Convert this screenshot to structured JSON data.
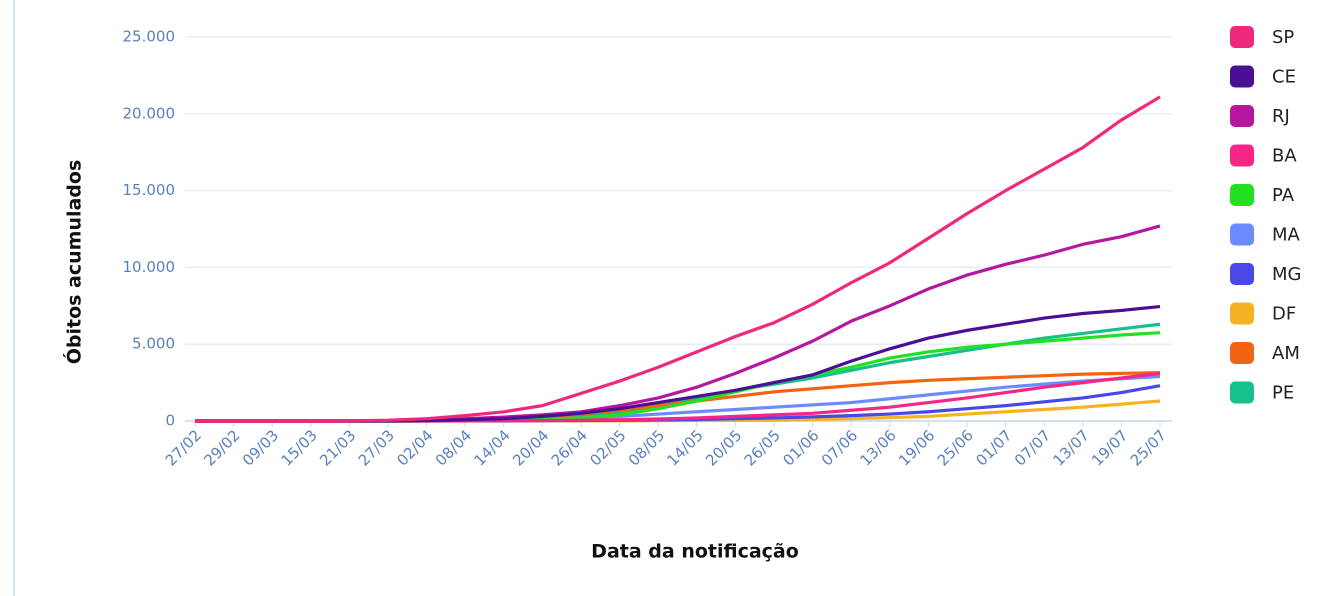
{
  "chart_data": {
    "type": "line",
    "x_label": "Data da notificação",
    "y_label": "Óbitos acumulados",
    "categories": [
      "27/02",
      "29/02",
      "09/03",
      "15/03",
      "21/03",
      "27/03",
      "02/04",
      "08/04",
      "14/04",
      "20/04",
      "26/04",
      "02/05",
      "08/05",
      "14/05",
      "20/05",
      "26/05",
      "01/06",
      "07/06",
      "13/06",
      "19/06",
      "25/06",
      "01/07",
      "07/07",
      "13/07",
      "19/07",
      "25/07"
    ],
    "ylim": [
      0,
      25000
    ],
    "yticks": [
      0,
      {
        "value": 5000,
        "label": "5.000"
      },
      {
        "value": 10000,
        "label": "10.000"
      },
      {
        "value": 15000,
        "label": "15.000"
      },
      {
        "value": 20000,
        "label": "20.000"
      },
      {
        "value": 25000,
        "label": "25.000"
      }
    ],
    "grid": true,
    "legend": "right",
    "series": [
      {
        "name": "SP",
        "color": "#f0287c",
        "values": [
          0,
          0,
          0,
          0,
          10,
          50,
          150,
          350,
          600,
          1000,
          1800,
          2600,
          3500,
          4500,
          5500,
          6400,
          7600,
          9000,
          10300,
          11900,
          13500,
          15000,
          16400,
          17800,
          19600,
          21100
        ]
      },
      {
        "name": "CE",
        "color": "#4b0f96",
        "values": [
          0,
          0,
          0,
          0,
          0,
          10,
          30,
          80,
          150,
          300,
          500,
          800,
          1200,
          1600,
          2000,
          2500,
          3000,
          3900,
          4700,
          5400,
          5900,
          6300,
          6700,
          7000,
          7200,
          7450
        ]
      },
      {
        "name": "RJ",
        "color": "#b5179e",
        "values": [
          0,
          0,
          0,
          0,
          0,
          10,
          50,
          150,
          250,
          400,
          600,
          1000,
          1500,
          2200,
          3100,
          4100,
          5200,
          6500,
          7500,
          8600,
          9500,
          10200,
          10800,
          11500,
          12000,
          12700
        ]
      },
      {
        "name": "BA",
        "color": "#f72585",
        "values": [
          0,
          0,
          0,
          0,
          0,
          0,
          5,
          10,
          20,
          30,
          50,
          80,
          130,
          200,
          300,
          400,
          500,
          700,
          900,
          1200,
          1500,
          1850,
          2200,
          2500,
          2800,
          3100
        ]
      },
      {
        "name": "PA",
        "color": "#22e022",
        "values": [
          0,
          0,
          0,
          0,
          0,
          0,
          5,
          20,
          50,
          100,
          200,
          400,
          800,
          1300,
          1900,
          2500,
          3000,
          3500,
          4100,
          4500,
          4800,
          5000,
          5200,
          5400,
          5600,
          5750
        ]
      },
      {
        "name": "MA",
        "color": "#6b8cff",
        "values": [
          0,
          0,
          0,
          0,
          0,
          0,
          5,
          20,
          40,
          100,
          200,
          300,
          450,
          600,
          750,
          900,
          1050,
          1200,
          1450,
          1700,
          1950,
          2200,
          2400,
          2600,
          2750,
          2900
        ]
      },
      {
        "name": "MG",
        "color": "#4848e8",
        "values": [
          0,
          0,
          0,
          0,
          0,
          0,
          0,
          5,
          10,
          20,
          30,
          50,
          70,
          100,
          150,
          200,
          270,
          350,
          450,
          600,
          800,
          1000,
          1250,
          1500,
          1850,
          2300
        ]
      },
      {
        "name": "DF",
        "color": "#f5b324",
        "values": [
          0,
          0,
          0,
          0,
          0,
          0,
          0,
          0,
          0,
          5,
          10,
          15,
          20,
          30,
          40,
          50,
          100,
          150,
          220,
          300,
          450,
          600,
          750,
          900,
          1100,
          1300
        ]
      },
      {
        "name": "AM",
        "color": "#f06414",
        "values": [
          0,
          0,
          0,
          0,
          0,
          0,
          20,
          70,
          150,
          250,
          450,
          700,
          1000,
          1300,
          1600,
          1900,
          2100,
          2300,
          2500,
          2650,
          2750,
          2850,
          2950,
          3050,
          3100,
          3150
        ]
      },
      {
        "name": "PE",
        "color": "#16c08a",
        "values": [
          0,
          0,
          0,
          0,
          0,
          0,
          10,
          50,
          100,
          200,
          300,
          600,
          1000,
          1500,
          2000,
          2400,
          2800,
          3300,
          3800,
          4200,
          4600,
          5000,
          5400,
          5700,
          6000,
          6300
        ]
      }
    ]
  }
}
